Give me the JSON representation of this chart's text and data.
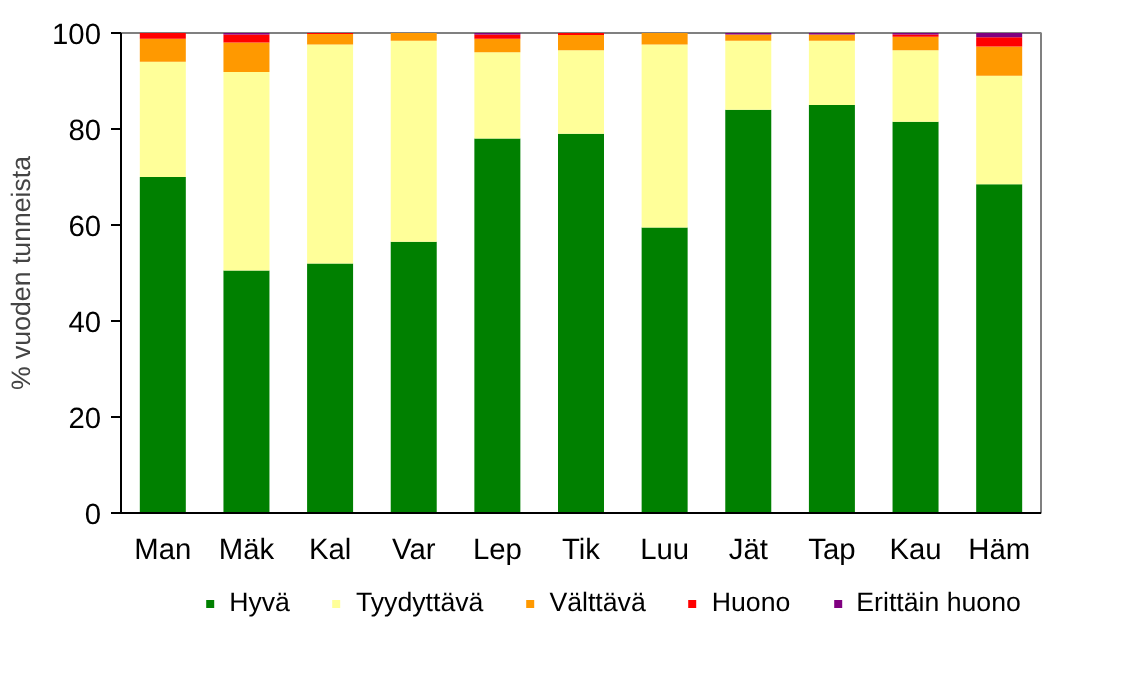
{
  "chart_data": {
    "type": "bar",
    "stacked": true,
    "ylabel": "% vuoden tunneista",
    "categories": [
      "Man",
      "Mäk",
      "Kal",
      "Var",
      "Lep",
      "Tik",
      "Luu",
      "Jät",
      "Tap",
      "Kau",
      "Häm"
    ],
    "ylim": [
      0,
      100
    ],
    "yticks": [
      0,
      20,
      40,
      60,
      80,
      100
    ],
    "grid": false,
    "legend": "bottom",
    "series": [
      {
        "name": "Hyvä",
        "color": "#008000",
        "values": [
          70,
          50.5,
          52,
          56.5,
          78,
          79,
          59.5,
          84,
          85,
          81.5,
          68.5
        ]
      },
      {
        "name": "Tyydyttävä",
        "color": "#ffff99",
        "values": [
          24,
          41.4,
          45.6,
          41.9,
          18,
          17.4,
          38.1,
          14.4,
          13.4,
          14.9,
          22.6
        ]
      },
      {
        "name": "Välttävä",
        "color": "#ff9900",
        "values": [
          4.8,
          6.1,
          2.2,
          1.6,
          2.8,
          3.2,
          2.4,
          1.3,
          1.3,
          2.8,
          6.1
        ]
      },
      {
        "name": "Huono",
        "color": "#ff0000",
        "values": [
          1.2,
          1.7,
          0.2,
          0,
          0.9,
          0.4,
          0,
          0,
          0,
          0.5,
          1.9
        ]
      },
      {
        "name": "Erittäin huono",
        "color": "#800080",
        "values": [
          0,
          0.3,
          0,
          0,
          0.3,
          0,
          0,
          0.3,
          0.3,
          0.3,
          0.9
        ]
      }
    ]
  }
}
